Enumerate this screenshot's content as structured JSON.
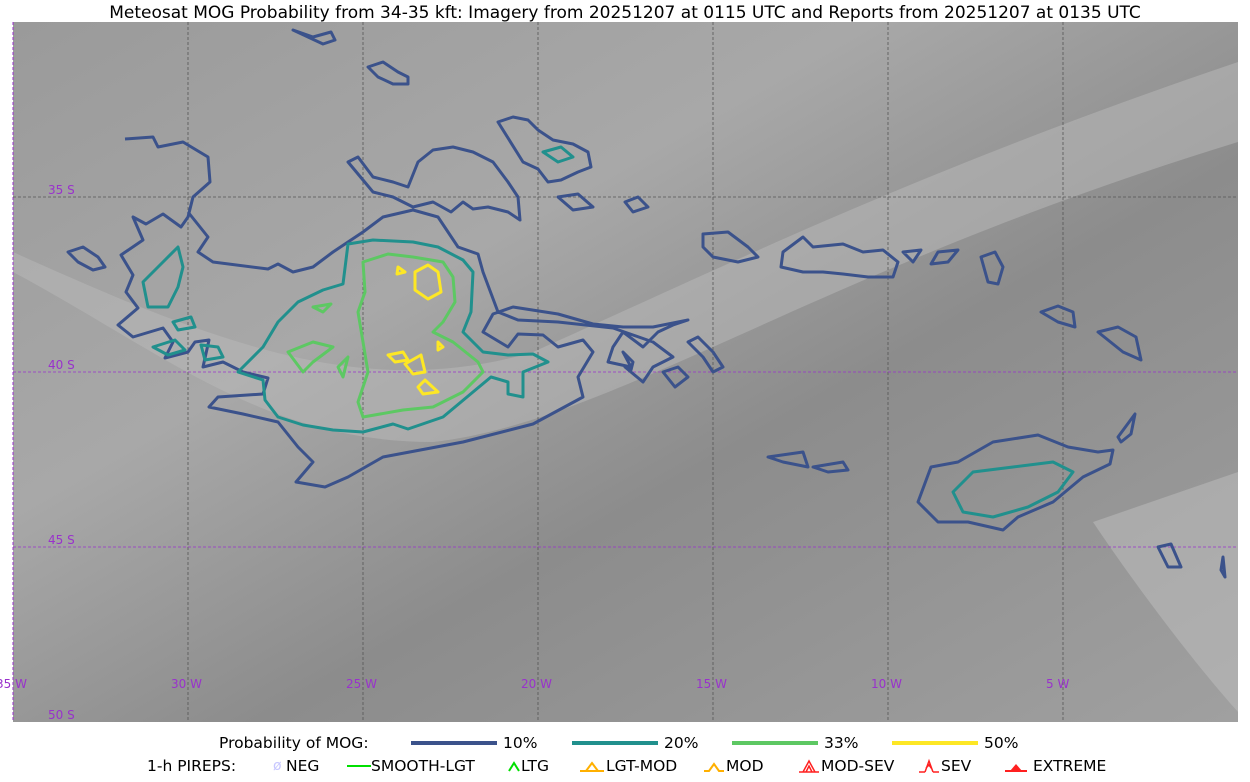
{
  "title": "Meteosat MOG Probability from 34-35 kft: Imagery from 20251207 at 0115 UTC and Reports from 20251207 at 0135 UTC",
  "map": {
    "lon_labels": [
      "35 W",
      "30 W",
      "25 W",
      "20 W",
      "15 W",
      "10 W",
      "5 W"
    ],
    "lat_labels": [
      "35 S",
      "40 S",
      "45 S",
      "50 S"
    ],
    "grid_color": "#9932cc"
  },
  "legend": {
    "probability_title": "Probability of MOG:",
    "probability_levels": [
      {
        "label": "10%",
        "color": "#3b528b"
      },
      {
        "label": "20%",
        "color": "#21908d"
      },
      {
        "label": "33%",
        "color": "#5dc863"
      },
      {
        "label": "50%",
        "color": "#fde725"
      }
    ],
    "pireps_title": "1-h PIREPS:",
    "pireps": [
      {
        "label": "NEG",
        "icon": "neg-circle-icon",
        "color": "#c8c8ff"
      },
      {
        "label": "SMOOTH-LGT",
        "icon": "line-icon",
        "color": "#00e000"
      },
      {
        "label": "LTG",
        "icon": "caret-icon",
        "color": "#00e000"
      },
      {
        "label": "LGT-MOD",
        "icon": "triangle-caret-icon",
        "color": "#ffb000"
      },
      {
        "label": "MOD",
        "icon": "caret-icon",
        "color": "#ffb000"
      },
      {
        "label": "MOD-SEV",
        "icon": "double-caret-icon",
        "color": "#ff2020"
      },
      {
        "label": "SEV",
        "icon": "double-caret-icon",
        "color": "#ff2020"
      },
      {
        "label": "EXTREME",
        "icon": "filled-triangle-icon",
        "color": "#ff2020"
      }
    ]
  }
}
